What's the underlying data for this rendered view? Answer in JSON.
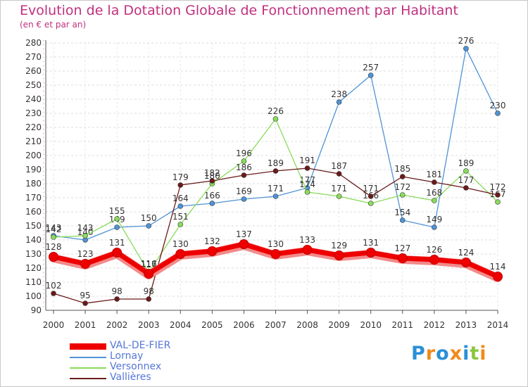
{
  "title": "Evolution de la Dotation Globale de Fonctionnement par Habitant",
  "subtitle": "(en € et par an)",
  "logo": {
    "text": "Proxiti",
    "letters": [
      {
        "ch": "P",
        "color": "#2a8fd8"
      },
      {
        "ch": "r",
        "color": "#f08a1c"
      },
      {
        "ch": "o",
        "color": "#2a8fd8"
      },
      {
        "ch": "x",
        "color": "#f08a1c"
      },
      {
        "ch": "i",
        "color": "#2a8fd8"
      },
      {
        "ch": "t",
        "color": "#8cc63f"
      },
      {
        "ch": "i",
        "color": "#f08a1c"
      }
    ]
  },
  "chart_data": {
    "type": "line",
    "title": "Evolution de la Dotation Globale de Fonctionnement par Habitant",
    "subtitle": "(en € et par an)",
    "categories": [
      "2000",
      "2001",
      "2002",
      "2003",
      "2004",
      "2005",
      "2006",
      "2007",
      "2008",
      "2009",
      "2010",
      "2011",
      "2012",
      "2013",
      "2014"
    ],
    "ylim": [
      90,
      280
    ],
    "yticks": [
      90,
      100,
      110,
      120,
      130,
      140,
      150,
      160,
      170,
      180,
      190,
      200,
      210,
      220,
      230,
      240,
      250,
      260,
      270,
      280
    ],
    "grid": true,
    "legend_position": "bottom-left",
    "series": [
      {
        "name": "VAL-DE-FIER",
        "color": "#ee0000",
        "values": [
          128,
          123,
          131,
          116,
          130,
          132,
          137,
          130,
          133,
          129,
          131,
          127,
          126,
          124,
          114
        ]
      },
      {
        "name": "Lornay",
        "color": "#4f93d6",
        "values": [
          143,
          140,
          149,
          150,
          164,
          166,
          169,
          171,
          177,
          238,
          257,
          154,
          149,
          276,
          230
        ]
      },
      {
        "name": "Versonnex",
        "color": "#88dc5a",
        "values": [
          142,
          143,
          155,
          117,
          151,
          180,
          196,
          226,
          174,
          171,
          166,
          172,
          168,
          189,
          167
        ]
      },
      {
        "name": "Vallières",
        "color": "#6b1a1a",
        "values": [
          102,
          95,
          98,
          98,
          179,
          182,
          186,
          189,
          191,
          187,
          171,
          185,
          181,
          177,
          172
        ]
      }
    ]
  }
}
